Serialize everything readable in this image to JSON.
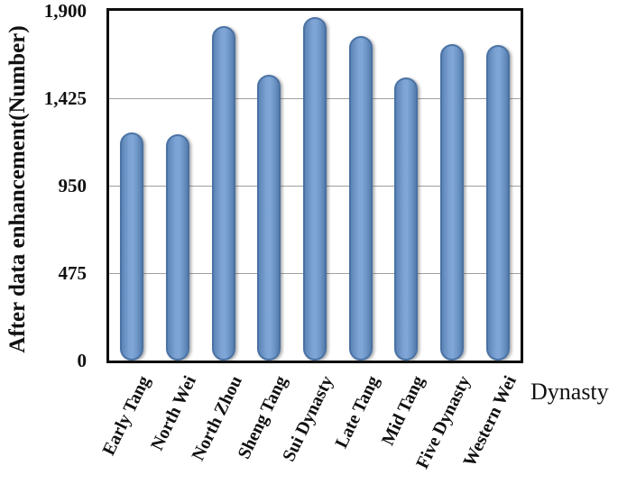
{
  "figure": {
    "y_axis_title": "After data enhancement(Number)",
    "x_axis_title": "Dynasty"
  },
  "chart_data": {
    "type": "bar",
    "title": "",
    "xlabel": "Dynasty",
    "ylabel": "After data enhancement(Number)",
    "categories": [
      "Early Tang",
      "North Wei",
      "North Zhou",
      "Sheng Tang",
      "Sui Dynasty",
      "Late Tang",
      "Mid Tang",
      "Five Dynasty",
      "Western Wei"
    ],
    "values": [
      1240,
      1230,
      1815,
      1550,
      1865,
      1765,
      1540,
      1720,
      1715
    ],
    "ylim": [
      0,
      1900
    ],
    "yticks": [
      {
        "value": 0,
        "label": "0"
      },
      {
        "value": 475,
        "label": "475"
      },
      {
        "value": 950,
        "label": "950"
      },
      {
        "value": 1425,
        "label": "1,425"
      },
      {
        "value": 1900,
        "label": "1,900"
      }
    ],
    "grid": "horizontal",
    "legend_position": "none",
    "colors": {
      "bar_fill": "#6d95c6",
      "bar_fill_light": "#7fa7d6",
      "bar_fill_dark": "#5d85b7",
      "bar_border": "#4a72a4",
      "gridline": "#a0a0a0",
      "frame": "#0d0d0d",
      "text": "#111111"
    }
  }
}
